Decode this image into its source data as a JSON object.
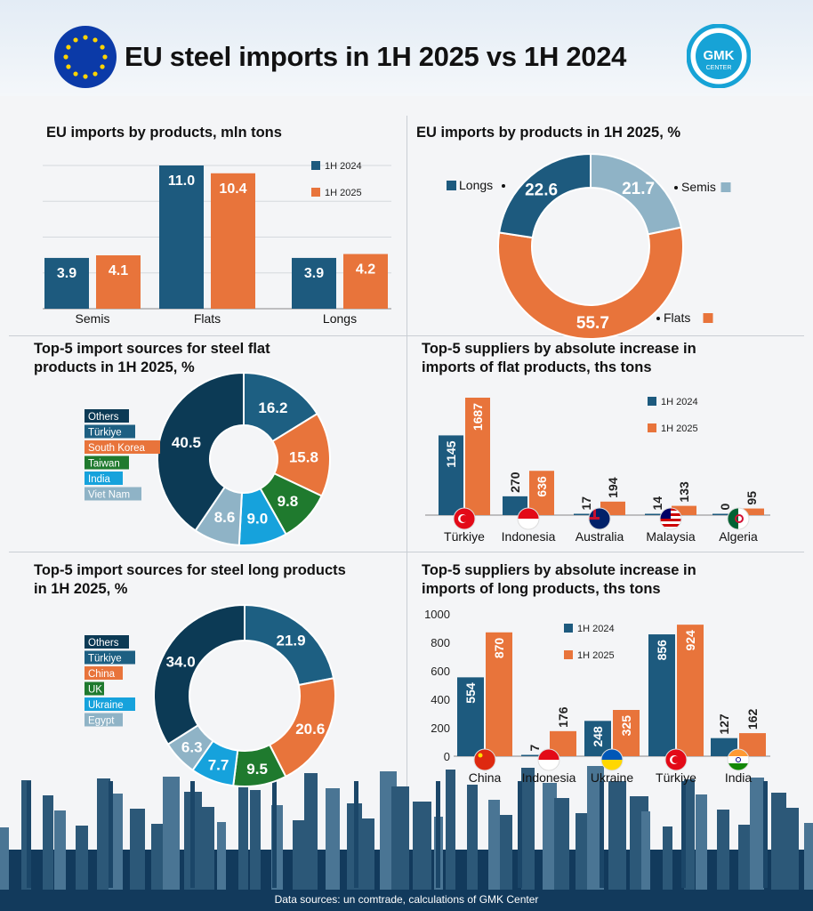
{
  "header": {
    "title": "EU steel imports in 1H 2025 vs 1H 2024",
    "logo_text": "GMK",
    "logo_subtext": "CENTER",
    "flag_icon": "eu-flag-icon"
  },
  "colors": {
    "y2024": "#1d5a7e",
    "y2025": "#e8743b",
    "navy": "#0c3a55",
    "steel": "#1d5f82",
    "lightsteel": "#8fb3c6",
    "green": "#1f7a2e",
    "cyan": "#16a2dc"
  },
  "footer": {
    "sources": "Data sources: un comtrade, calculations of GMK Center"
  },
  "chart_data": [
    {
      "id": "products_mln",
      "type": "bar",
      "title": "EU imports by products, mln tons",
      "categories": [
        "Semis",
        "Flats",
        "Longs"
      ],
      "series": [
        {
          "name": "1H 2024",
          "values": [
            3.9,
            11.0,
            3.9
          ]
        },
        {
          "name": "1H 2025",
          "values": [
            4.1,
            10.4,
            4.2
          ]
        }
      ],
      "value_labels": [
        [
          "3.9",
          "11.0",
          "3.9"
        ],
        [
          "4.1",
          "10.4",
          "4.2"
        ]
      ],
      "ylim": [
        0,
        12
      ],
      "grid": true,
      "legend": "top-right"
    },
    {
      "id": "products_pct",
      "type": "pie",
      "title": "EU imports by products in 1H 2025, %",
      "donut": true,
      "slices": [
        {
          "label": "Semis",
          "value": 21.7,
          "text": "21.7",
          "color": "#8fb3c6"
        },
        {
          "label": "Flats",
          "value": 55.7,
          "text": "55.7",
          "color": "#e8743b"
        },
        {
          "label": "Longs",
          "value": 22.6,
          "text": "22.6",
          "color": "#1d5a7e"
        }
      ]
    },
    {
      "id": "flat_sources",
      "type": "pie",
      "title": "Top-5 import sources for steel flat products in 1H 2025, %",
      "title_lines": [
        "Top-5 import sources for steel flat",
        "products in 1H 2025, %"
      ],
      "donut": true,
      "legend": "left",
      "slices": [
        {
          "label": "Türkiye",
          "value": 16.2,
          "text": "16.2",
          "color": "#1d5f82"
        },
        {
          "label": "South Korea",
          "value": 15.8,
          "text": "15.8",
          "color": "#e8743b"
        },
        {
          "label": "Taiwan",
          "value": 9.8,
          "text": "9.8",
          "color": "#1f7a2e"
        },
        {
          "label": "India",
          "value": 9.0,
          "text": "9.0",
          "color": "#16a2dc"
        },
        {
          "label": "Viet Nam",
          "value": 8.6,
          "text": "8.6",
          "color": "#8fb3c6"
        },
        {
          "label": "Others",
          "value": 40.5,
          "text": "40.5",
          "color": "#0c3a55"
        }
      ],
      "legend_order": [
        "Others",
        "Türkiye",
        "South Korea",
        "Taiwan",
        "India",
        "Viet Nam"
      ]
    },
    {
      "id": "flat_increase",
      "type": "bar",
      "title": "Top-5 suppliers by absolute increase in imports of flat products, ths tons",
      "title_lines": [
        "Top-5 suppliers by absolute increase in",
        "imports of flat products, ths tons"
      ],
      "categories": [
        "Türkiye",
        "Indonesia",
        "Australia",
        "Malaysia",
        "Algeria"
      ],
      "flags": [
        "turkey-flag-icon",
        "indonesia-flag-icon",
        "australia-flag-icon",
        "malaysia-flag-icon",
        "algeria-flag-icon"
      ],
      "series": [
        {
          "name": "1H 2024",
          "values": [
            1145,
            270,
            17,
            14,
            0
          ]
        },
        {
          "name": "1H 2025",
          "values": [
            1687,
            636,
            194,
            133,
            95
          ]
        }
      ],
      "value_labels": [
        [
          "1145",
          "270",
          "17",
          "14",
          "0"
        ],
        [
          "1687",
          "636",
          "194",
          "133",
          "95"
        ]
      ],
      "legend": "top-right"
    },
    {
      "id": "long_sources",
      "type": "pie",
      "title": "Top-5 import sources for steel long products in 1H 2025, %",
      "title_lines": [
        "Top-5 import sources for steel long products",
        "in 1H 2025, %"
      ],
      "donut": true,
      "legend": "left",
      "slices": [
        {
          "label": "Türkiye",
          "value": 21.9,
          "text": "21.9",
          "color": "#1d5f82"
        },
        {
          "label": "China",
          "value": 20.6,
          "text": "20.6",
          "color": "#e8743b"
        },
        {
          "label": "UK",
          "value": 9.5,
          "text": "9.5",
          "color": "#1f7a2e"
        },
        {
          "label": "Ukraine",
          "value": 7.7,
          "text": "7.7",
          "color": "#16a2dc"
        },
        {
          "label": "Egypt",
          "value": 6.3,
          "text": "6.3",
          "color": "#8fb3c6"
        },
        {
          "label": "Others",
          "value": 34.0,
          "text": "34.0",
          "color": "#0c3a55"
        }
      ],
      "legend_order": [
        "Others",
        "Türkiye",
        "China",
        "UK",
        "Ukraine",
        "Egypt"
      ]
    },
    {
      "id": "long_increase",
      "type": "bar",
      "title": "Top-5 suppliers by absolute increase in imports of long products, ths tons",
      "title_lines": [
        "Top-5 suppliers by absolute increase in",
        "imports of long products, ths tons"
      ],
      "categories": [
        "China",
        "Indonesia",
        "Ukraine",
        "Türkiye",
        "India"
      ],
      "flags": [
        "china-flag-icon",
        "indonesia-flag-icon",
        "ukraine-flag-icon",
        "turkey-flag-icon",
        "india-flag-icon"
      ],
      "series": [
        {
          "name": "1H 2024",
          "values": [
            554,
            7,
            248,
            856,
            127
          ]
        },
        {
          "name": "1H 2025",
          "values": [
            870,
            176,
            325,
            924,
            162
          ]
        }
      ],
      "value_labels": [
        [
          "554",
          "7",
          "248",
          "856",
          "127"
        ],
        [
          "870",
          "176",
          "325",
          "924",
          "162"
        ]
      ],
      "ylim": [
        0,
        1000
      ],
      "yticks": [
        "0",
        "200",
        "400",
        "600",
        "800",
        "1000"
      ],
      "legend": "top-left"
    }
  ]
}
